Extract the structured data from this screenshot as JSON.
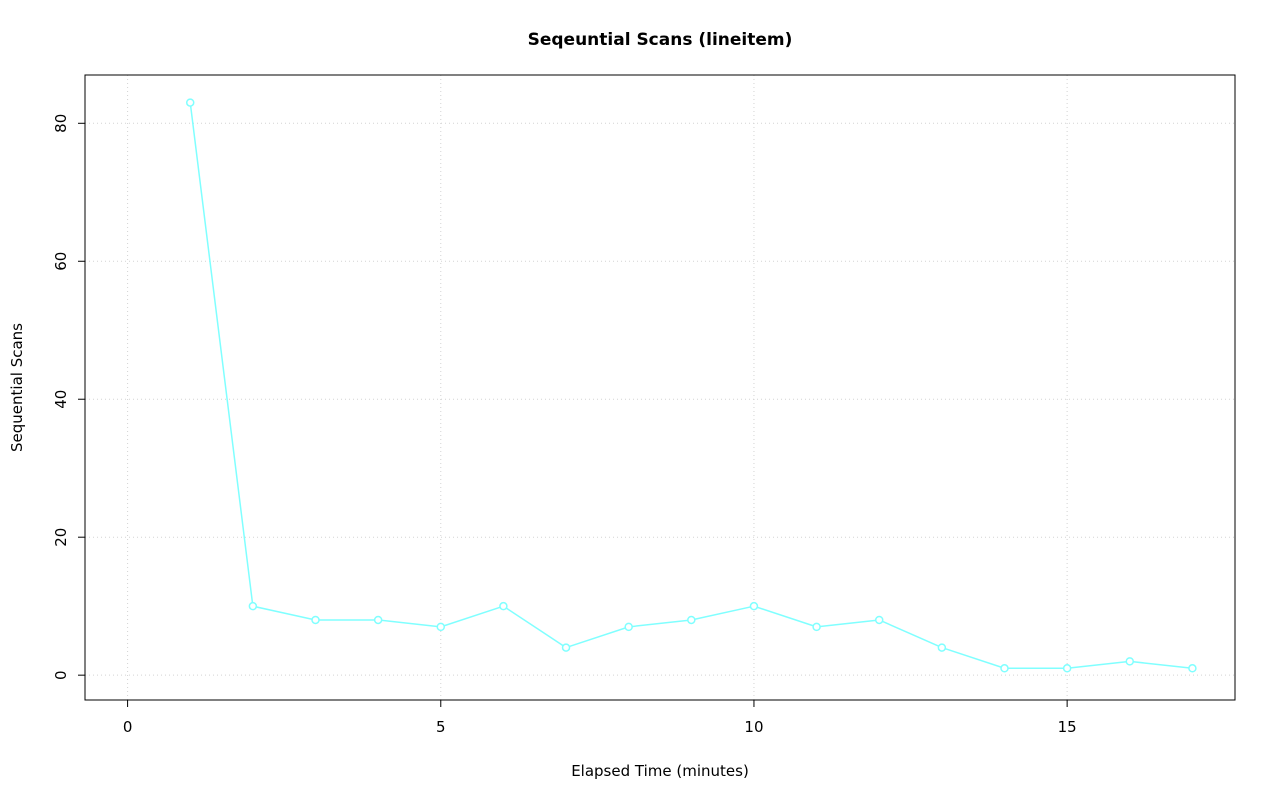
{
  "chart_data": {
    "type": "line",
    "title": "Seqeuntial Scans (lineitem)",
    "xlabel": "Elapsed Time (minutes)",
    "ylabel": "Sequential Scans",
    "x": [
      1,
      2,
      3,
      4,
      5,
      6,
      7,
      8,
      9,
      10,
      11,
      12,
      13,
      14,
      15,
      16,
      17
    ],
    "values": [
      83,
      10,
      8,
      8,
      7,
      10,
      4,
      7,
      8,
      10,
      7,
      8,
      4,
      1,
      1,
      2,
      1
    ],
    "x_ticks": [
      0,
      5,
      10,
      15
    ],
    "y_ticks": [
      0,
      20,
      40,
      60,
      80
    ],
    "x_range": [
      -0.68,
      17.68
    ],
    "y_range": [
      -3.6,
      87
    ],
    "grid": true,
    "grid_style": "dotted",
    "legend": "none",
    "marker": "open-circle",
    "line_color": "#80ffff",
    "grid_color": "#d3d3d3",
    "frame_color": "#000000"
  }
}
